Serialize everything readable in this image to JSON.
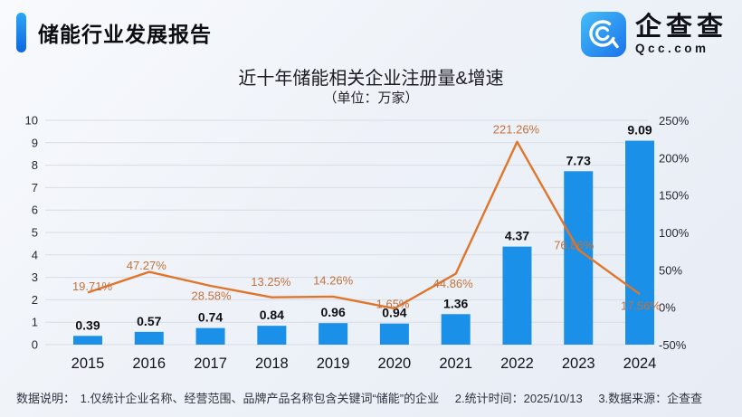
{
  "header": {
    "report_title": "储能行业发展报告"
  },
  "logo": {
    "name_cn": "企查查",
    "name_en": "Qcc.com"
  },
  "chart_data": {
    "type": "bar+line",
    "title": "近十年储能相关企业注册量&增速",
    "subtitle": "（单位：万家）",
    "categories": [
      "2015",
      "2016",
      "2017",
      "2018",
      "2019",
      "2020",
      "2021",
      "2022",
      "2023",
      "2024"
    ],
    "series": [
      {
        "name": "注册量",
        "type": "bar",
        "axis": "left",
        "color": "#1a90e9",
        "values": [
          0.39,
          0.57,
          0.74,
          0.84,
          0.96,
          0.94,
          1.36,
          4.37,
          7.73,
          9.09
        ],
        "labels": [
          "0.39",
          "0.57",
          "0.74",
          "0.84",
          "0.96",
          "0.94",
          "1.36",
          "4.37",
          "7.73",
          "9.09"
        ]
      },
      {
        "name": "增速",
        "type": "line",
        "axis": "right",
        "color": "#e0752c",
        "label_color": "#c3723c",
        "values": [
          19.71,
          47.27,
          28.58,
          13.25,
          14.26,
          -1.65,
          44.86,
          221.26,
          76.86,
          17.56
        ],
        "labels": [
          "19.71%",
          "47.27%",
          "28.58%",
          "13.25%",
          "14.26%",
          "-1.65%",
          "44.86%",
          "221.26%",
          "76.86%",
          "17.56%"
        ]
      }
    ],
    "left_axis": {
      "min": 0,
      "max": 10,
      "step": 1,
      "ticks": [
        "0",
        "1",
        "2",
        "3",
        "4",
        "5",
        "6",
        "7",
        "8",
        "9",
        "10"
      ]
    },
    "right_axis": {
      "min": -50,
      "max": 250,
      "step": 50,
      "ticks": [
        "-50%",
        "0%",
        "50%",
        "100%",
        "150%",
        "200%",
        "250%"
      ]
    },
    "grid": true,
    "legend_position": "none"
  },
  "footer": {
    "label": "数据说明：",
    "note1": "1.仅统计企业名称、经营范围、品牌产品名称包含关键词“储能”的企业",
    "note2": "2.统计时间：2025/10/13",
    "note3": "3.数据来源：企查查"
  }
}
